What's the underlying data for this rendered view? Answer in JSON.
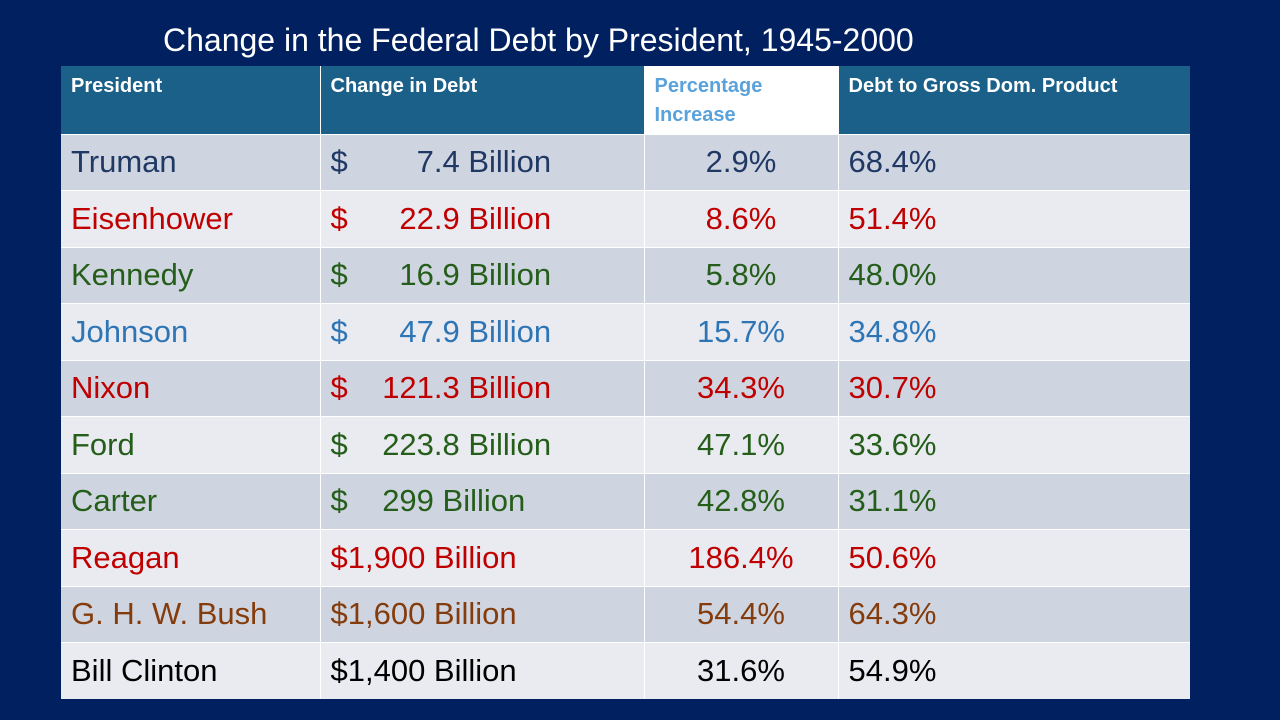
{
  "slide": {
    "title": "Change in the Federal Debt by President, 1945-2000"
  },
  "table": {
    "headers": [
      "President",
      "Change in Debt",
      "Percentage Increase",
      "Debt to Gross Dom. Product"
    ],
    "rows": [
      {
        "president": "Truman",
        "change": "$        7.4 Billion",
        "percent": "2.9%",
        "debt_gdp": "68.4%",
        "color": "#1f3864"
      },
      {
        "president": "Eisenhower",
        "change": "$      22.9 Billion",
        "percent": "8.6%",
        "debt_gdp": "51.4%",
        "color": "#c00000"
      },
      {
        "president": "Kennedy",
        "change": "$      16.9 Billion",
        "percent": "5.8%",
        "debt_gdp": "48.0%",
        "color": "#255e1a"
      },
      {
        "president": "Johnson",
        "change": "$      47.9 Billion",
        "percent": "15.7%",
        "debt_gdp": "34.8%",
        "color": "#2e75b6"
      },
      {
        "president": "Nixon",
        "change": "$    121.3 Billion",
        "percent": "34.3%",
        "debt_gdp": "30.7%",
        "color": "#c00000"
      },
      {
        "president": "Ford",
        "change": "$    223.8 Billion",
        "percent": "47.1%",
        "debt_gdp": "33.6%",
        "color": "#255e1a"
      },
      {
        "president": "Carter",
        "change": "$    299 Billion",
        "percent": "42.8%",
        "debt_gdp": "31.1%",
        "color": "#255e1a"
      },
      {
        "president": "Reagan",
        "change": "$1,900 Billion",
        "percent": "186.4%",
        "debt_gdp": "50.6%",
        "color": "#c00000"
      },
      {
        "president": "G. H. W. Bush",
        "change": "$1,600 Billion",
        "percent": "54.4%",
        "debt_gdp": "64.3%",
        "color": "#843c0c"
      },
      {
        "president": "Bill Clinton",
        "change": "$1,400 Billion",
        "percent": "31.6%",
        "debt_gdp": "54.9%",
        "color": "#000000"
      }
    ]
  }
}
